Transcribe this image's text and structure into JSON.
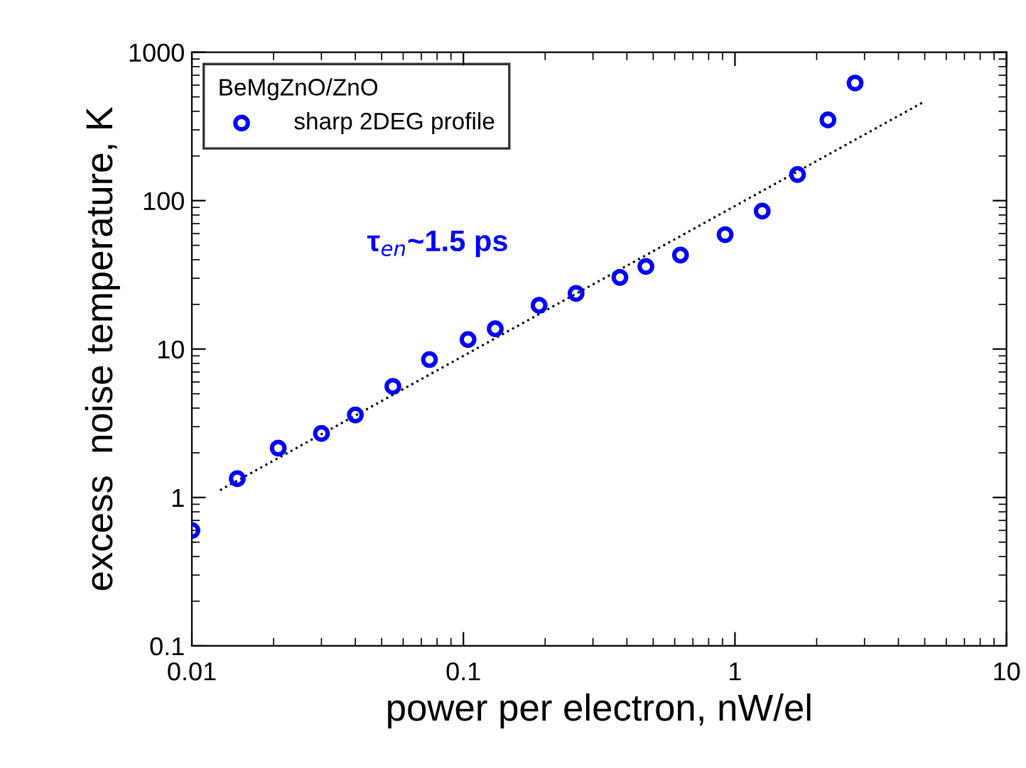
{
  "chart_data": {
    "type": "scatter",
    "xlabel": "power per electron, nW/el",
    "ylabel": "excess  noise temperature, K",
    "legend_title": "BeMgZnO/ZnO",
    "log": "xy",
    "xlim": [
      0.01,
      10
    ],
    "ylim": [
      0.1,
      1000
    ],
    "xticks": [
      0.01,
      0.1,
      1,
      10
    ],
    "yticks": [
      0.1,
      1,
      10,
      100,
      1000
    ],
    "legend": "top left",
    "grid": false,
    "annotations": [
      "τ$_{en}$~1.5 ps"
    ],
    "series": [
      {
        "name": "sharp 2DEG profile",
        "color": "#0000ff",
        "marker": "circle",
        "x": [
          0.01,
          0.0147,
          0.0208,
          0.03,
          0.04,
          0.055,
          0.075,
          0.104,
          0.131,
          0.19,
          0.26,
          0.377,
          0.47,
          0.63,
          0.92,
          1.26,
          1.7,
          2.2,
          2.77
        ],
        "values": [
          0.6,
          1.34,
          2.15,
          2.7,
          3.6,
          5.6,
          8.5,
          11.6,
          13.7,
          19.7,
          23.7,
          30.4,
          36,
          43,
          59,
          85,
          150,
          350,
          620
        ]
      },
      {
        "type": "line",
        "color": "#000000",
        "line_style": "dotted",
        "marker": "none",
        "x": [
          0.0127,
          4.97
        ],
        "values": [
          1.12,
          464
        ]
      }
    ]
  }
}
